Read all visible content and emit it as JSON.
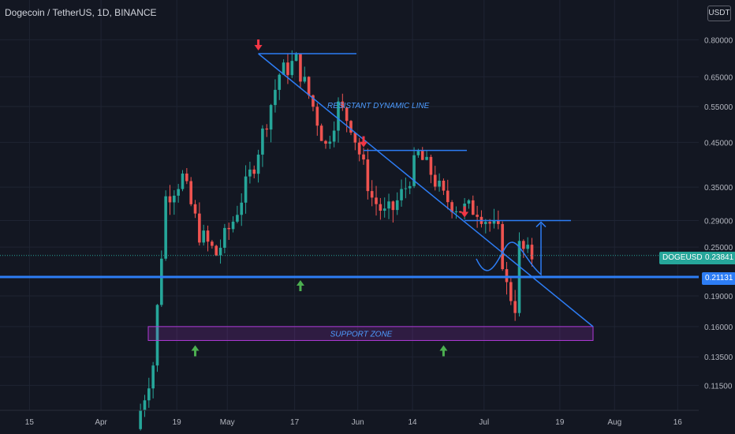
{
  "header": {
    "symbol_title": "Dogecoin / TetherUS, 1D, BINANCE",
    "currency": "USDT"
  },
  "colors": {
    "background": "#131722",
    "up": "#26a69a",
    "down": "#ef5350",
    "line": "#2d7df5",
    "zone": "#b03ad8",
    "arrow_up": "#4caf50",
    "arrow_down": "#f23645"
  },
  "price_axis": {
    "ticks": [
      "0.80000",
      "0.65000",
      "0.55000",
      "0.45000",
      "0.35000",
      "0.29000",
      "0.25000",
      "0.19000",
      "0.16000",
      "0.13500",
      "0.11500"
    ]
  },
  "current_price": {
    "symbol": "DOGEUSDT",
    "value": "0.23841"
  },
  "horizontal_level": {
    "value": "0.21131"
  },
  "annotations": {
    "resistance_label": "RESISTANT DYNAMIC LINE",
    "support_label": "SUPPORT ZONE"
  },
  "chart_data": {
    "type": "candlestick",
    "title": "Dogecoin / TetherUS, 1D, BINANCE",
    "ylim": [
      0.1,
      1.0
    ],
    "y_scale": "log",
    "x_ticks": [
      "15",
      "Apr",
      "19",
      "May",
      "17",
      "Jun",
      "14",
      "Jul",
      "19",
      "Aug",
      "16"
    ],
    "x_range": [
      "2021-03-08",
      "2021-08-21"
    ],
    "key_points": [
      {
        "date": "2021-05-08",
        "price": 0.74,
        "note": "peak"
      },
      {
        "date": "2021-06-02",
        "price": 0.43
      },
      {
        "date": "2021-06-26",
        "price": 0.29
      },
      {
        "date": "2021-06-27",
        "price": 0.2384
      }
    ],
    "support_zone": [
      0.148,
      0.16
    ],
    "legend": "none",
    "grid": true
  }
}
